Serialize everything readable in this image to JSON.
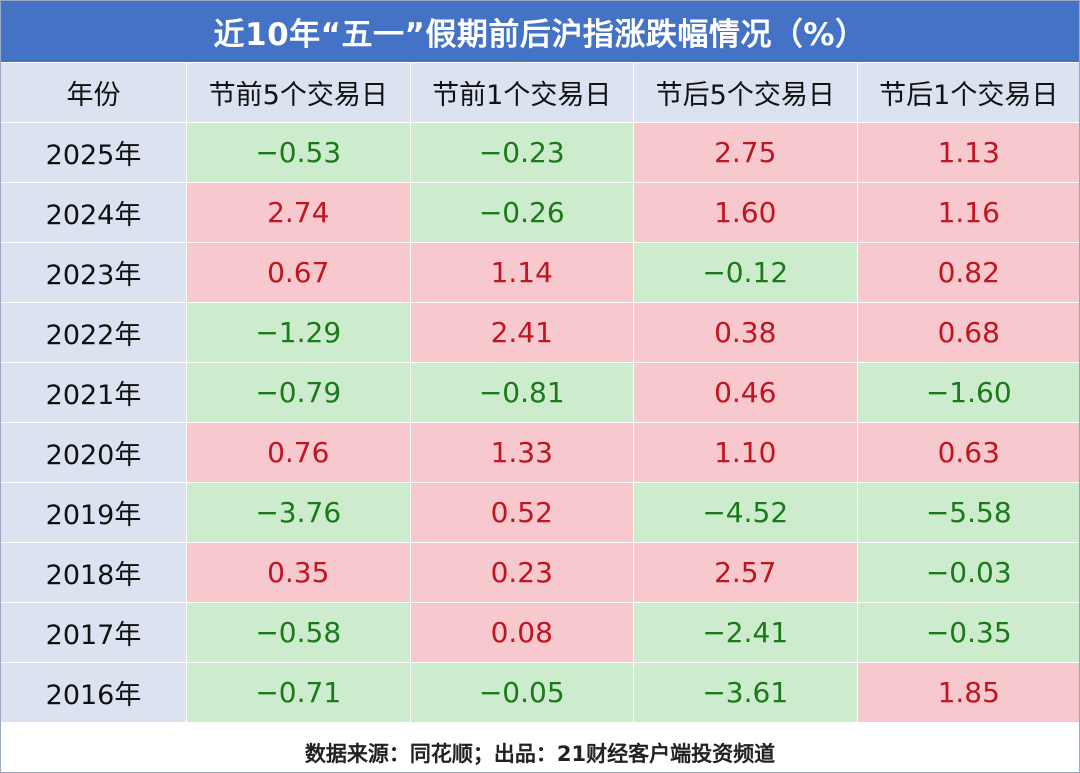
{
  "colors": {
    "header_bg": "#4472c4",
    "label_bg": "#dbe3f0",
    "up_bg": "#f8c8cf",
    "up_text": "#c0141f",
    "down_bg": "#cdeccd",
    "down_text": "#1a7a1a"
  },
  "chart_data": {
    "type": "table",
    "title": "近10年“五一”假期前后沪指涨跌幅情况（%）",
    "columns": [
      "年份",
      "节前5个交易日",
      "节前1个交易日",
      "节后5个交易日",
      "节后1个交易日"
    ],
    "rows": [
      {
        "year": "2025年",
        "values": [
          "−0.53",
          "−0.23",
          "2.75",
          "1.13"
        ]
      },
      {
        "year": "2024年",
        "values": [
          "2.74",
          "−0.26",
          "1.60",
          "1.16"
        ]
      },
      {
        "year": "2023年",
        "values": [
          "0.67",
          "1.14",
          "−0.12",
          "0.82"
        ]
      },
      {
        "year": "2022年",
        "values": [
          "−1.29",
          "2.41",
          "0.38",
          "0.68"
        ]
      },
      {
        "year": "2021年",
        "values": [
          "−0.79",
          "−0.81",
          "0.46",
          "−1.60"
        ]
      },
      {
        "year": "2020年",
        "values": [
          "0.76",
          "1.33",
          "1.10",
          "0.63"
        ]
      },
      {
        "year": "2019年",
        "values": [
          "−3.76",
          "0.52",
          "−4.52",
          "−5.58"
        ]
      },
      {
        "year": "2018年",
        "values": [
          "0.35",
          "0.23",
          "2.57",
          "−0.03"
        ]
      },
      {
        "year": "2017年",
        "values": [
          "−0.58",
          "0.08",
          "−2.41",
          "−0.35"
        ]
      },
      {
        "year": "2016年",
        "values": [
          "−0.71",
          "−0.05",
          "−3.61",
          "1.85"
        ]
      }
    ],
    "source": "数据来源：同花顺；出品：21财经客户端投资频道"
  }
}
